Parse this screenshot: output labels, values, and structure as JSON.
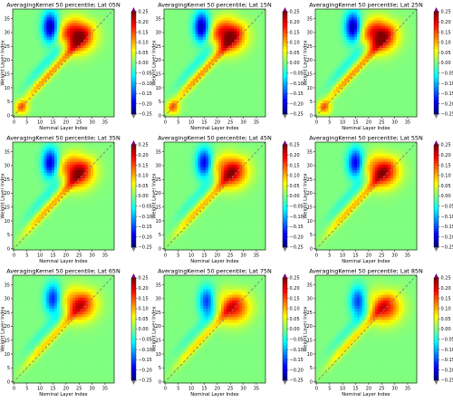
{
  "chart_data": {
    "type": "heatmap",
    "shared": {
      "xlabel": "Nominal Layer Index",
      "ylabel": "Weight Layer Index",
      "x_ticks": [
        0,
        5,
        10,
        15,
        20,
        25,
        30,
        35
      ],
      "y_ticks": [
        0,
        5,
        10,
        15,
        20,
        25,
        30,
        35
      ],
      "xlim": [
        0,
        39
      ],
      "ylim": [
        0,
        39
      ],
      "colorbar_ticks": [
        0.25,
        0.2,
        0.15,
        0.1,
        0.05,
        0.0,
        -0.05,
        -0.1,
        -0.15,
        -0.2,
        -0.25
      ],
      "colorbar_tick_labels": [
        "0.25",
        "0.20",
        "0.15",
        "0.10",
        "0.05",
        "0.00",
        "−0.05",
        "−0.10",
        "−0.15",
        "−0.20",
        "−0.25"
      ],
      "vmin": -0.25,
      "vmax": 0.25,
      "colormap": "jet",
      "colorbar_extend": "both",
      "diagonal": "dashed grey one-to-one line"
    },
    "panels": [
      {
        "title": "AveragingKernel 50 percentile; Lat 05N",
        "red_center": [
          24,
          29
        ],
        "blue_center": [
          14,
          32
        ],
        "strength": 1.0,
        "low_spot": true
      },
      {
        "title": "AveragingKernel 50 percentile; Lat 15N",
        "red_center": [
          24,
          29
        ],
        "blue_center": [
          14,
          32
        ],
        "strength": 1.0,
        "low_spot": true
      },
      {
        "title": "AveragingKernel 50 percentile; Lat 25N",
        "red_center": [
          24,
          29
        ],
        "blue_center": [
          14,
          32
        ],
        "strength": 1.0,
        "low_spot": true
      },
      {
        "title": "AveragingKernel 50 percentile; Lat 35N",
        "red_center": [
          24,
          28
        ],
        "blue_center": [
          14,
          31
        ],
        "strength": 0.9,
        "low_spot": false
      },
      {
        "title": "AveragingKernel 50 percentile; Lat 45N",
        "red_center": [
          25,
          28
        ],
        "blue_center": [
          15,
          31
        ],
        "strength": 0.85,
        "low_spot": false
      },
      {
        "title": "AveragingKernel 50 percentile; Lat 55N",
        "red_center": [
          25,
          28
        ],
        "blue_center": [
          15,
          31
        ],
        "strength": 0.85,
        "low_spot": false
      },
      {
        "title": "AveragingKernel 50 percentile; Lat 65N",
        "red_center": [
          25,
          28
        ],
        "blue_center": [
          15,
          30
        ],
        "strength": 0.75,
        "low_spot": false
      },
      {
        "title": "AveragingKernel 50 percentile; Lat 75N",
        "red_center": [
          26,
          27
        ],
        "blue_center": [
          16,
          29
        ],
        "strength": 0.7,
        "low_spot": false
      },
      {
        "title": "AveragingKernel 50 percentile; Lat 85N",
        "red_center": [
          26,
          27
        ],
        "blue_center": [
          16,
          29
        ],
        "strength": 0.7,
        "low_spot": false
      }
    ]
  }
}
